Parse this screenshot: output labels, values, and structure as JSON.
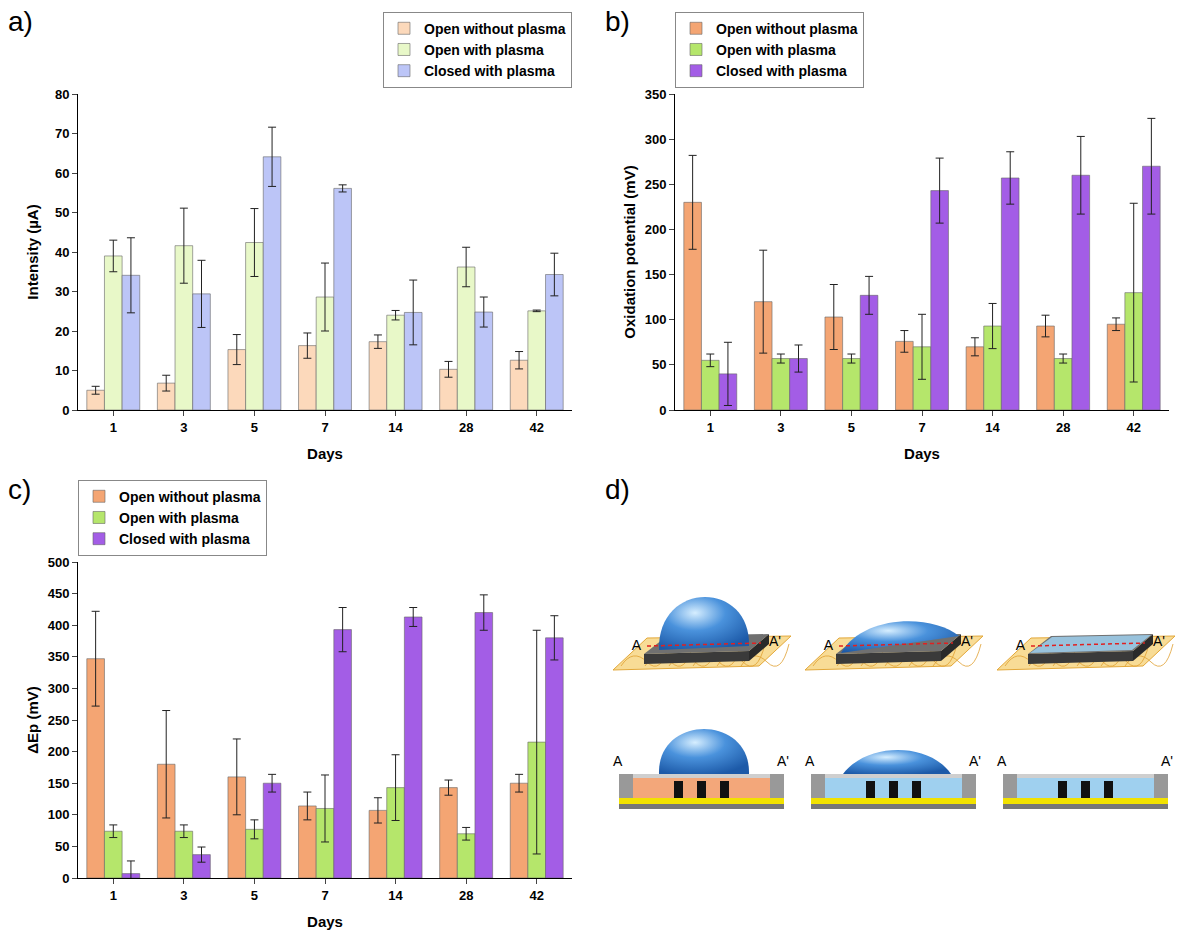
{
  "chart_data": [
    {
      "type": "bar",
      "panel_label": "a)",
      "x_label": "Days",
      "y_label": "Intensity (µA)",
      "categories": [
        "1",
        "3",
        "5",
        "7",
        "14",
        "28",
        "42"
      ],
      "ylim": [
        0,
        80
      ],
      "yticks": [
        0,
        10,
        20,
        30,
        40,
        50,
        60,
        70,
        80
      ],
      "grid": false,
      "legend": "upper right",
      "series": [
        {
          "name": "Open without plasma",
          "color": "#fcd9bb",
          "values": [
            5,
            6.8,
            15.3,
            16.3,
            17.3,
            10.3,
            12.6
          ],
          "errors": [
            1,
            2,
            3.8,
            3.2,
            1.7,
            2,
            2.2
          ]
        },
        {
          "name": "Open with plasma",
          "color": "#e8f8c8",
          "values": [
            39,
            41.6,
            42.4,
            28.6,
            24,
            36.2,
            25.1
          ],
          "errors": [
            4,
            9.5,
            8.6,
            8.6,
            1.2,
            5,
            0.2
          ]
        },
        {
          "name": "Closed with plasma",
          "color": "#bcc5f7",
          "values": [
            34.1,
            29.4,
            64.1,
            56.1,
            24.7,
            24.8,
            34.3
          ],
          "errors": [
            9.5,
            8.5,
            7.5,
            0.9,
            8.2,
            3.8,
            5.4
          ]
        }
      ]
    },
    {
      "type": "bar",
      "panel_label": "b)",
      "x_label": "Days",
      "y_label": "Oxidation potential (mV)",
      "categories": [
        "1",
        "3",
        "5",
        "7",
        "14",
        "28",
        "42"
      ],
      "ylim": [
        0,
        350
      ],
      "yticks": [
        0,
        50,
        100,
        150,
        200,
        250,
        300,
        350
      ],
      "grid": false,
      "legend": "upper left",
      "series": [
        {
          "name": "Open without plasma",
          "color": "#f4a573",
          "values": [
            230,
            120,
            103,
            76,
            70,
            93,
            95
          ],
          "errors": [
            52,
            57,
            36,
            12,
            10,
            12,
            7
          ]
        },
        {
          "name": "Open with plasma",
          "color": "#b5e66b",
          "values": [
            55,
            57,
            57,
            70,
            93,
            57,
            130
          ],
          "errors": [
            7,
            5,
            5,
            36,
            25,
            5,
            99
          ]
        },
        {
          "name": "Closed with plasma",
          "color": "#a35de6",
          "values": [
            40,
            57,
            127,
            243,
            257,
            260,
            270
          ],
          "errors": [
            35,
            15,
            21,
            36,
            29,
            43,
            53
          ]
        }
      ]
    },
    {
      "type": "bar",
      "panel_label": "c)",
      "x_label": "Days",
      "y_label": "ΔEp (mV)",
      "categories": [
        "1",
        "3",
        "5",
        "7",
        "14",
        "28",
        "42"
      ],
      "ylim": [
        0,
        500
      ],
      "yticks": [
        0,
        50,
        100,
        150,
        200,
        250,
        300,
        350,
        400,
        450,
        500
      ],
      "grid": false,
      "legend": "upper left",
      "series": [
        {
          "name": "Open without plasma",
          "color": "#f4a573",
          "values": [
            347,
            180,
            160,
            114,
            107,
            143,
            150
          ],
          "errors": [
            75,
            85,
            60,
            22,
            20,
            12,
            14
          ]
        },
        {
          "name": "Open with plasma",
          "color": "#b5e66b",
          "values": [
            74,
            74,
            77,
            110,
            143,
            70,
            215
          ],
          "errors": [
            10,
            10,
            15,
            53,
            52,
            10,
            177
          ]
        },
        {
          "name": "Closed with plasma",
          "color": "#a35de6",
          "values": [
            7,
            37,
            150,
            393,
            413,
            420,
            380
          ],
          "errors": [
            20,
            12,
            14,
            35,
            15,
            28,
            35
          ]
        }
      ]
    }
  ],
  "diagram": {
    "panel_label": "d)",
    "stages": [
      {
        "start": "A",
        "end": "A'"
      },
      {
        "start": "A",
        "end": "A'"
      },
      {
        "start": "A",
        "end": "A'"
      }
    ]
  }
}
